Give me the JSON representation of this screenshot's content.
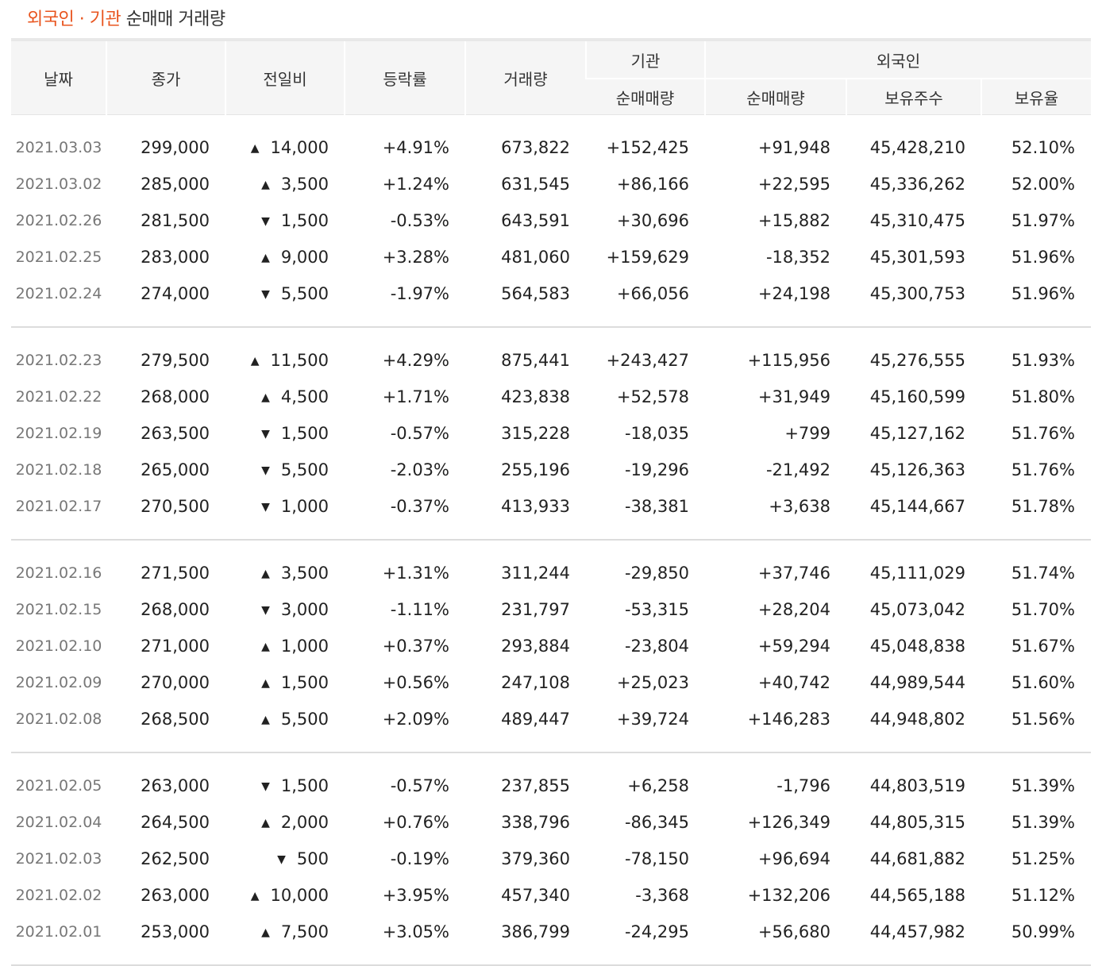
{
  "title": {
    "highlight": "외국인 · 기관",
    "rest": "순매매 거래량"
  },
  "headers": {
    "date": "날짜",
    "close": "종가",
    "change": "전일비",
    "rate": "등락률",
    "volume": "거래량",
    "institution": "기관",
    "foreign": "외국인",
    "inst_net": "순매매량",
    "foreign_net": "순매매량",
    "holdings": "보유주수",
    "holding_ratio": "보유율"
  },
  "colors": {
    "up": "#d21e1e",
    "down": "#1d58d6",
    "accent": "#e8541e"
  },
  "icons": {
    "up": "triangle-up-icon",
    "down": "triangle-down-icon"
  },
  "groups": [
    {
      "rows": [
        {
          "date": "2021.03.03",
          "close": "299,000",
          "dir": "up",
          "change": "14,000",
          "rate": "+4.91%",
          "volume": "673,822",
          "inst": "+152,425",
          "foreign": "+91,948",
          "holdings": "45,428,210",
          "ratio": "52.10%"
        },
        {
          "date": "2021.03.02",
          "close": "285,000",
          "dir": "up",
          "change": "3,500",
          "rate": "+1.24%",
          "volume": "631,545",
          "inst": "+86,166",
          "foreign": "+22,595",
          "holdings": "45,336,262",
          "ratio": "52.00%"
        },
        {
          "date": "2021.02.26",
          "close": "281,500",
          "dir": "down",
          "change": "1,500",
          "rate": "-0.53%",
          "volume": "643,591",
          "inst": "+30,696",
          "foreign": "+15,882",
          "holdings": "45,310,475",
          "ratio": "51.97%"
        },
        {
          "date": "2021.02.25",
          "close": "283,000",
          "dir": "up",
          "change": "9,000",
          "rate": "+3.28%",
          "volume": "481,060",
          "inst": "+159,629",
          "foreign": "-18,352",
          "holdings": "45,301,593",
          "ratio": "51.96%"
        },
        {
          "date": "2021.02.24",
          "close": "274,000",
          "dir": "down",
          "change": "5,500",
          "rate": "-1.97%",
          "volume": "564,583",
          "inst": "+66,056",
          "foreign": "+24,198",
          "holdings": "45,300,753",
          "ratio": "51.96%"
        }
      ]
    },
    {
      "rows": [
        {
          "date": "2021.02.23",
          "close": "279,500",
          "dir": "up",
          "change": "11,500",
          "rate": "+4.29%",
          "volume": "875,441",
          "inst": "+243,427",
          "foreign": "+115,956",
          "holdings": "45,276,555",
          "ratio": "51.93%"
        },
        {
          "date": "2021.02.22",
          "close": "268,000",
          "dir": "up",
          "change": "4,500",
          "rate": "+1.71%",
          "volume": "423,838",
          "inst": "+52,578",
          "foreign": "+31,949",
          "holdings": "45,160,599",
          "ratio": "51.80%"
        },
        {
          "date": "2021.02.19",
          "close": "263,500",
          "dir": "down",
          "change": "1,500",
          "rate": "-0.57%",
          "volume": "315,228",
          "inst": "-18,035",
          "foreign": "+799",
          "holdings": "45,127,162",
          "ratio": "51.76%"
        },
        {
          "date": "2021.02.18",
          "close": "265,000",
          "dir": "down",
          "change": "5,500",
          "rate": "-2.03%",
          "volume": "255,196",
          "inst": "-19,296",
          "foreign": "-21,492",
          "holdings": "45,126,363",
          "ratio": "51.76%"
        },
        {
          "date": "2021.02.17",
          "close": "270,500",
          "dir": "down",
          "change": "1,000",
          "rate": "-0.37%",
          "volume": "413,933",
          "inst": "-38,381",
          "foreign": "+3,638",
          "holdings": "45,144,667",
          "ratio": "51.78%"
        }
      ]
    },
    {
      "rows": [
        {
          "date": "2021.02.16",
          "close": "271,500",
          "dir": "up",
          "change": "3,500",
          "rate": "+1.31%",
          "volume": "311,244",
          "inst": "-29,850",
          "foreign": "+37,746",
          "holdings": "45,111,029",
          "ratio": "51.74%"
        },
        {
          "date": "2021.02.15",
          "close": "268,000",
          "dir": "down",
          "change": "3,000",
          "rate": "-1.11%",
          "volume": "231,797",
          "inst": "-53,315",
          "foreign": "+28,204",
          "holdings": "45,073,042",
          "ratio": "51.70%"
        },
        {
          "date": "2021.02.10",
          "close": "271,000",
          "dir": "up",
          "change": "1,000",
          "rate": "+0.37%",
          "volume": "293,884",
          "inst": "-23,804",
          "foreign": "+59,294",
          "holdings": "45,048,838",
          "ratio": "51.67%"
        },
        {
          "date": "2021.02.09",
          "close": "270,000",
          "dir": "up",
          "change": "1,500",
          "rate": "+0.56%",
          "volume": "247,108",
          "inst": "+25,023",
          "foreign": "+40,742",
          "holdings": "44,989,544",
          "ratio": "51.60%"
        },
        {
          "date": "2021.02.08",
          "close": "268,500",
          "dir": "up",
          "change": "5,500",
          "rate": "+2.09%",
          "volume": "489,447",
          "inst": "+39,724",
          "foreign": "+146,283",
          "holdings": "44,948,802",
          "ratio": "51.56%"
        }
      ]
    },
    {
      "rows": [
        {
          "date": "2021.02.05",
          "close": "263,000",
          "dir": "down",
          "change": "1,500",
          "rate": "-0.57%",
          "volume": "237,855",
          "inst": "+6,258",
          "foreign": "-1,796",
          "holdings": "44,803,519",
          "ratio": "51.39%"
        },
        {
          "date": "2021.02.04",
          "close": "264,500",
          "dir": "up",
          "change": "2,000",
          "rate": "+0.76%",
          "volume": "338,796",
          "inst": "-86,345",
          "foreign": "+126,349",
          "holdings": "44,805,315",
          "ratio": "51.39%"
        },
        {
          "date": "2021.02.03",
          "close": "262,500",
          "dir": "down",
          "change": "500",
          "rate": "-0.19%",
          "volume": "379,360",
          "inst": "-78,150",
          "foreign": "+96,694",
          "holdings": "44,681,882",
          "ratio": "51.25%"
        },
        {
          "date": "2021.02.02",
          "close": "263,000",
          "dir": "up",
          "change": "10,000",
          "rate": "+3.95%",
          "volume": "457,340",
          "inst": "-3,368",
          "foreign": "+132,206",
          "holdings": "44,565,188",
          "ratio": "51.12%"
        },
        {
          "date": "2021.02.01",
          "close": "253,000",
          "dir": "up",
          "change": "7,500",
          "rate": "+3.05%",
          "volume": "386,799",
          "inst": "-24,295",
          "foreign": "+56,680",
          "holdings": "44,457,982",
          "ratio": "50.99%"
        }
      ]
    }
  ]
}
